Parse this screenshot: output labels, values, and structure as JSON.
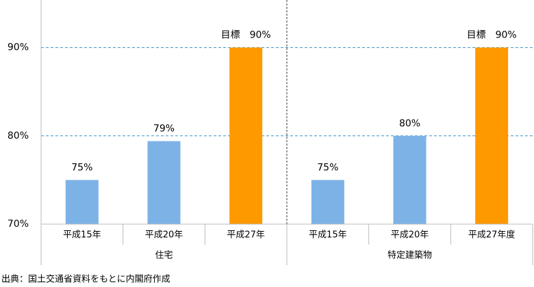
{
  "chart_data": {
    "type": "bar",
    "ylim": [
      70,
      95
    ],
    "yticks": [
      {
        "value": 70,
        "label": "70%"
      },
      {
        "value": 80,
        "label": "80%"
      },
      {
        "value": 90,
        "label": "90%"
      }
    ],
    "grid": true,
    "groups": [
      {
        "name": "住宅",
        "categories": [
          "平成15年",
          "平成20年",
          "平成27年"
        ],
        "values": [
          75,
          79.4,
          90
        ],
        "value_labels": [
          "75%",
          "79%",
          "目標　90%"
        ],
        "colors": [
          "#7db2e6",
          "#7db2e6",
          "#ff9900"
        ]
      },
      {
        "name": "特定建築物",
        "categories": [
          "平成15年",
          "平成20年",
          "平成27年度"
        ],
        "values": [
          75,
          80,
          90
        ],
        "value_labels": [
          "75%",
          "80%",
          "目標　90%"
        ],
        "colors": [
          "#7db2e6",
          "#7db2e6",
          "#ff9900"
        ]
      }
    ],
    "source": "出典：国土交通省資料をもとに内閣府作成"
  }
}
